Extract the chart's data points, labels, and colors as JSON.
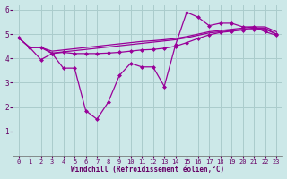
{
  "background_color": "#cce8e8",
  "grid_color": "#aacccc",
  "line_color": "#990099",
  "xlabel": "Windchill (Refroidissement éolien,°C)",
  "xlim": [
    -0.5,
    23.5
  ],
  "ylim": [
    0,
    6.2
  ],
  "xtick_labels": [
    "0",
    "1",
    "2",
    "3",
    "4",
    "5",
    "6",
    "7",
    "8",
    "9",
    "10",
    "11",
    "12",
    "13",
    "14",
    "15",
    "16",
    "17",
    "18",
    "19",
    "20",
    "21",
    "22",
    "23"
  ],
  "xtick_pos": [
    0,
    1,
    2,
    3,
    4,
    5,
    6,
    7,
    8,
    9,
    10,
    11,
    12,
    13,
    14,
    15,
    16,
    17,
    18,
    19,
    20,
    21,
    22,
    23
  ],
  "ytick_labels": [
    "1",
    "2",
    "3",
    "4",
    "5",
    "6"
  ],
  "ytick_pos": [
    1,
    2,
    3,
    4,
    5,
    6
  ],
  "line1_x": [
    0,
    1,
    2,
    3,
    4,
    5,
    6,
    7,
    8,
    9,
    10,
    11,
    12,
    13,
    14,
    15,
    16,
    17,
    18,
    19,
    20,
    21,
    22,
    23
  ],
  "line1_y": [
    4.85,
    4.45,
    4.45,
    4.3,
    4.35,
    4.4,
    4.45,
    4.5,
    4.55,
    4.6,
    4.65,
    4.7,
    4.73,
    4.77,
    4.82,
    4.9,
    5.0,
    5.1,
    5.15,
    5.2,
    5.25,
    5.3,
    5.3,
    5.1
  ],
  "line2_x": [
    0,
    1,
    2,
    3,
    4,
    5,
    6,
    7,
    8,
    9,
    10,
    11,
    12,
    13,
    14,
    15,
    16,
    17,
    18,
    19,
    20,
    21,
    22,
    23
  ],
  "line2_y": [
    4.85,
    4.45,
    4.47,
    4.22,
    4.27,
    4.32,
    4.37,
    4.42,
    4.47,
    4.52,
    4.57,
    4.62,
    4.67,
    4.72,
    4.77,
    4.85,
    4.95,
    5.05,
    5.1,
    5.15,
    5.2,
    5.25,
    5.25,
    5.0
  ],
  "line3_x": [
    0,
    1,
    2,
    3,
    4,
    5,
    6,
    7,
    8,
    9,
    10,
    11,
    12,
    13,
    14,
    15,
    16,
    17,
    18,
    19,
    20,
    21,
    22,
    23
  ],
  "line3_y": [
    4.85,
    4.45,
    3.95,
    4.2,
    3.6,
    3.6,
    1.85,
    1.5,
    2.2,
    3.3,
    3.8,
    3.65,
    3.65,
    2.85,
    4.55,
    5.9,
    5.7,
    5.35,
    5.45,
    5.45,
    5.3,
    5.3,
    5.1,
    4.95
  ],
  "line4_x": [
    1,
    2,
    3,
    4,
    5,
    6,
    7,
    8,
    9,
    10,
    11,
    12,
    13,
    14,
    15,
    16,
    17,
    18,
    19,
    20,
    21,
    22,
    23
  ],
  "line4_y": [
    4.45,
    4.45,
    4.2,
    4.25,
    4.2,
    4.2,
    4.2,
    4.22,
    4.25,
    4.3,
    4.35,
    4.37,
    4.42,
    4.5,
    4.65,
    4.82,
    4.97,
    5.07,
    5.12,
    5.17,
    5.2,
    5.2,
    5.0
  ]
}
